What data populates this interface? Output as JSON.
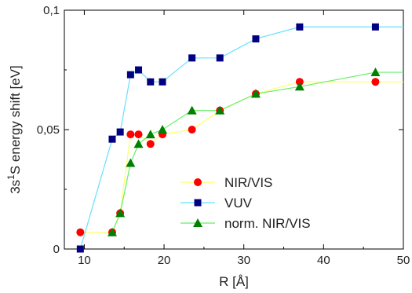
{
  "chart_data": {
    "type": "line",
    "xlabel": "R [Å]",
    "ylabel_parts": [
      "3s",
      "1",
      "S energy shift [eV]"
    ],
    "xlim": [
      7.5,
      50
    ],
    "ylim": [
      0,
      0.1
    ],
    "x_ticks": [
      10,
      20,
      30,
      40,
      50
    ],
    "y_ticks": [
      0,
      0.05,
      0.1
    ],
    "x_tick_labels": [
      "10",
      "20",
      "30",
      "40",
      "50"
    ],
    "y_tick_labels": [
      "0",
      "0,05",
      "0,1"
    ],
    "grid": false,
    "legend_position": "center-right",
    "series": [
      {
        "name": "NIR/VIS",
        "marker": "circle",
        "marker_color": "#ff0000",
        "line_color": "#ffff66",
        "x": [
          9.5,
          13.5,
          14.5,
          15.8,
          16.8,
          18.3,
          19.8,
          23.5,
          27,
          31.5,
          37,
          46.5
        ],
        "y": [
          0.007,
          0.007,
          0.015,
          0.048,
          0.048,
          0.044,
          0.048,
          0.05,
          0.058,
          0.065,
          0.07,
          0.07
        ],
        "extend_to_x": 50
      },
      {
        "name": "VUV",
        "marker": "square",
        "marker_color": "#000080",
        "line_color": "#66e0ff",
        "x": [
          9.5,
          13.5,
          14.5,
          15.8,
          16.8,
          18.3,
          19.8,
          23.5,
          27,
          31.5,
          37,
          46.5
        ],
        "y": [
          0,
          0.046,
          0.049,
          0.073,
          0.075,
          0.07,
          0.07,
          0.08,
          0.08,
          0.088,
          0.093,
          0.093
        ],
        "extend_to_x": 50
      },
      {
        "name": "norm. NIR/VIS",
        "marker": "triangle",
        "marker_color": "#008000",
        "line_color": "#66ee66",
        "x": [
          13.5,
          14.5,
          15.8,
          16.8,
          18.3,
          19.8,
          23.5,
          27,
          31.5,
          37,
          46.5
        ],
        "y": [
          0.007,
          0.015,
          0.036,
          0.044,
          0.048,
          0.05,
          0.058,
          0.058,
          0.065,
          0.068,
          0.074
        ],
        "extend_to_x": 50
      }
    ]
  }
}
